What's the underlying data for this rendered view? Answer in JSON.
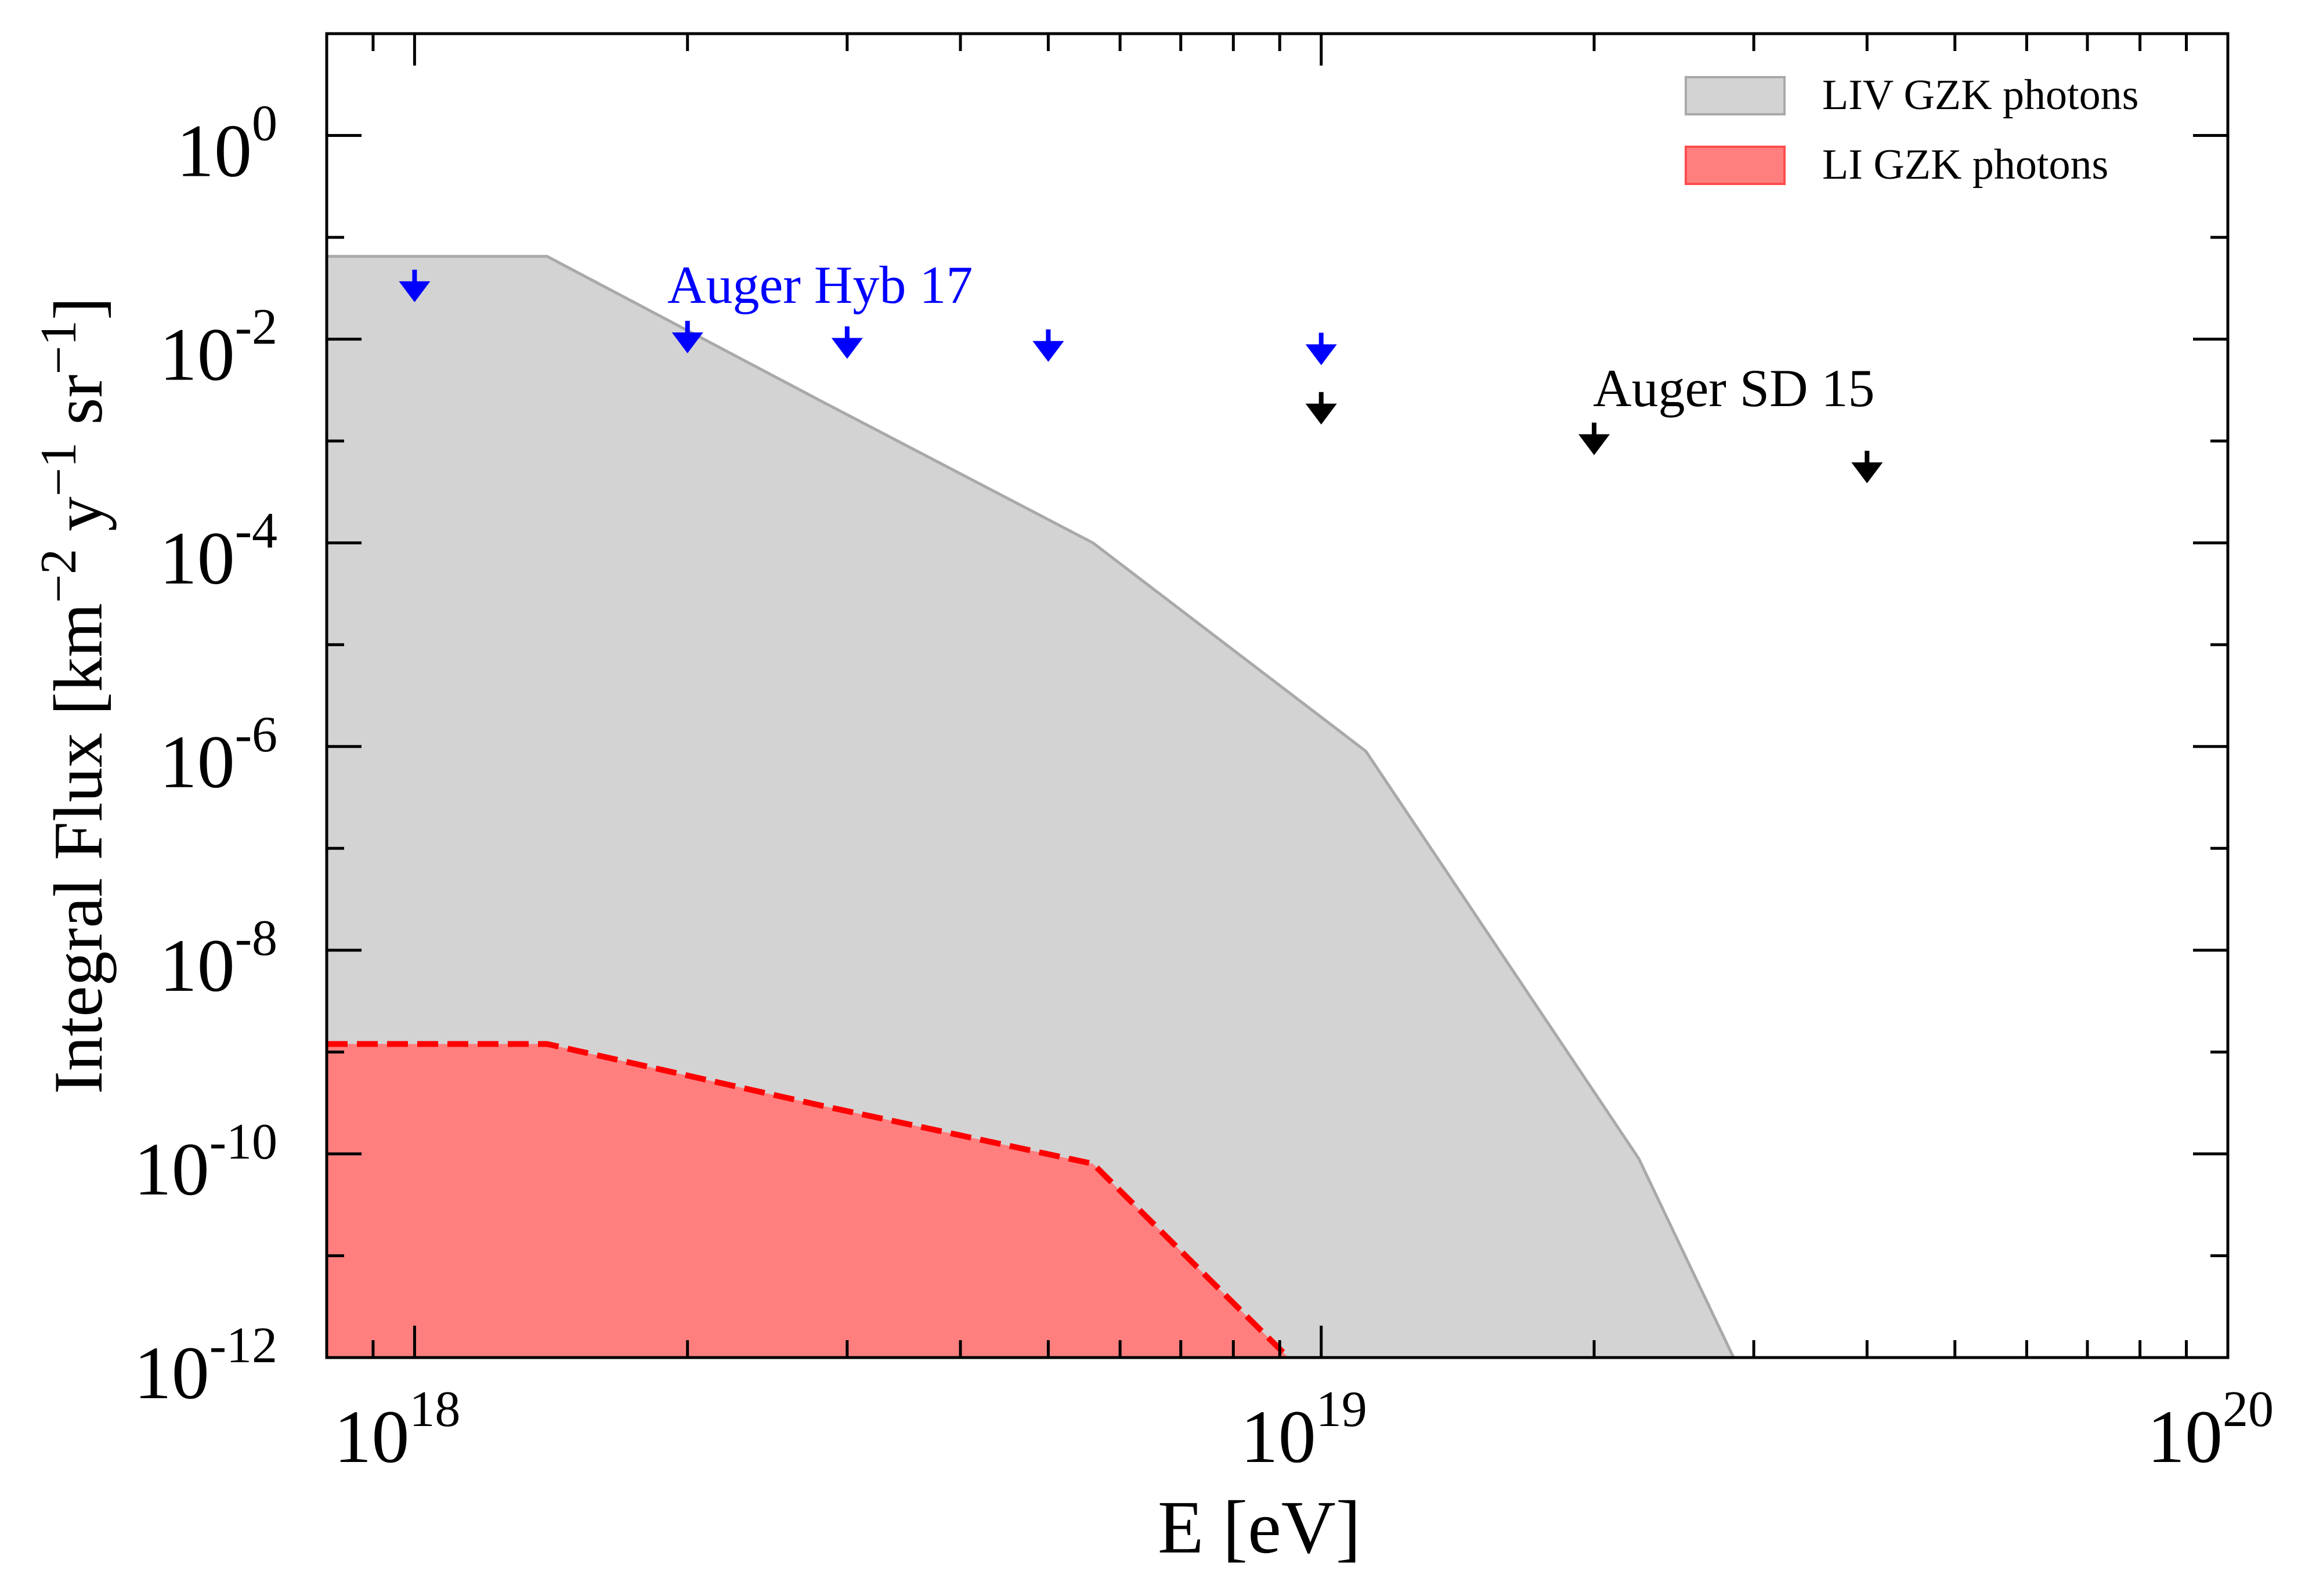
{
  "chart_data": {
    "type": "area",
    "xscale": "log",
    "yscale": "log",
    "xlabel": "E [eV]",
    "ylabel": "Integral Flux [km^-2 y^-1 sr^-1]",
    "ylabel_parts": [
      "Integral Flux [km",
      "−2",
      " y",
      "−1",
      " sr",
      "−1",
      "]"
    ],
    "xlim": [
      8e+17,
      1e+20
    ],
    "ylim": [
      1e-12,
      10
    ],
    "grid": false,
    "legend_position": "top-right",
    "x_ticks": [
      {
        "value": 1e+18,
        "base": "10",
        "exp": "18"
      },
      {
        "value": 1e+19,
        "base": "10",
        "exp": "19"
      },
      {
        "value": 1e+20,
        "base": "10",
        "exp": "20"
      }
    ],
    "y_ticks": [
      {
        "value": 1,
        "base": "10",
        "exp": "0"
      },
      {
        "value": 0.01,
        "base": "10",
        "exp": "-2"
      },
      {
        "value": 0.0001,
        "base": "10",
        "exp": "-4"
      },
      {
        "value": 1e-06,
        "base": "10",
        "exp": "-6"
      },
      {
        "value": 1e-08,
        "base": "10",
        "exp": "-8"
      },
      {
        "value": 1e-10,
        "base": "10",
        "exp": "-10"
      },
      {
        "value": 1e-12,
        "base": "10",
        "exp": "-12"
      }
    ],
    "series": [
      {
        "name": "LIV GZK photons",
        "kind": "band",
        "fill": "#d3d3d3",
        "stroke": "#a9a9a9",
        "points": [
          [
            8e+17,
            0.065
          ],
          [
            1.4e+18,
            0.065
          ],
          [
            2.8e+18,
            0.0025
          ],
          [
            5.6e+18,
            0.0001
          ],
          [
            1.12e+19,
            9e-07
          ],
          [
            2.24e+19,
            9e-11
          ],
          [
            2.85e+19,
            1e-12
          ]
        ]
      },
      {
        "name": "LI GZK photons",
        "kind": "band",
        "fill": "#ff7f7f",
        "stroke": "#ff0000",
        "dashed": true,
        "points": [
          [
            8e+17,
            1.2e-09
          ],
          [
            1.4e+18,
            1.2e-09
          ],
          [
            2.8e+18,
            3e-10
          ],
          [
            5.6e+18,
            8e-11
          ],
          [
            9.2e+18,
            1e-12
          ]
        ]
      },
      {
        "name": "Auger Hyb 17",
        "kind": "upper_limits",
        "color": "#0000ff",
        "label": "Auger Hyb 17",
        "x": [
          1e+18,
          2e+18,
          3e+18,
          5e+18,
          1e+19
        ],
        "y": [
          0.027,
          0.0085,
          0.0075,
          0.007,
          0.0065
        ]
      },
      {
        "name": "Auger SD 15",
        "kind": "upper_limits",
        "color": "#000000",
        "label": "Auger SD 15",
        "x": [
          1e+19,
          2e+19,
          4e+19
        ],
        "y": [
          0.0017,
          0.00085,
          0.00045
        ]
      }
    ],
    "legend": [
      {
        "label": "LIV GZK photons",
        "fill": "#d3d3d3",
        "stroke": "#a9a9a9"
      },
      {
        "label": "LI GZK photons",
        "fill": "#ff7f7f",
        "stroke": "#ff4d4d"
      }
    ]
  }
}
